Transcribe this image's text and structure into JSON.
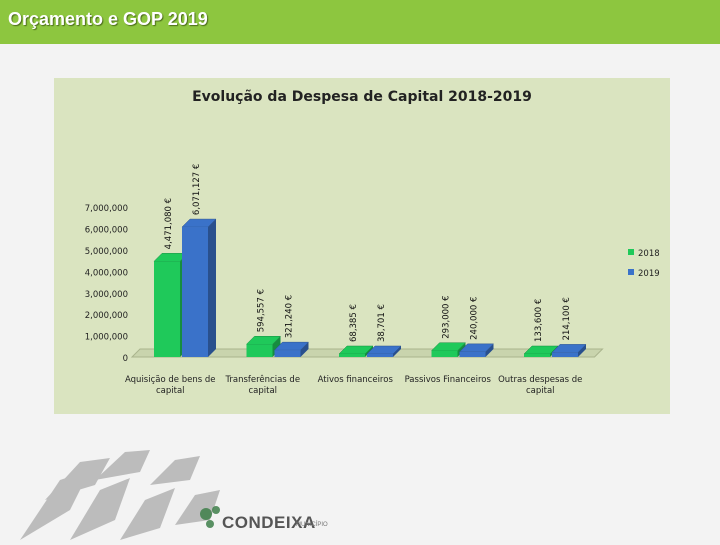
{
  "slide": {
    "title": "Orçamento e GOP 2019"
  },
  "logo": {
    "name": "CONDEIXA",
    "sub": "MUNICÍPIO"
  },
  "colors": {
    "series_2018": "#1fc95a",
    "series_2019": "#3a72c9",
    "header": "#8dc63f",
    "panel": "#dae4c0"
  },
  "chart_data": {
    "type": "bar",
    "title": "Evolução da Despesa de Capital 2018-2019",
    "categories": [
      "Aquisição de bens de capital",
      "Transferências de capital",
      "Ativos financeiros",
      "Passivos Financeiros",
      "Outras despesas de capital"
    ],
    "series": [
      {
        "name": "2018",
        "values": [
          4471080,
          594557,
          68385,
          293000,
          133600
        ],
        "labels": [
          "4,471,080 €",
          "594,557 €",
          "68,385 €",
          "293,000 €",
          "133,600 €"
        ]
      },
      {
        "name": "2019",
        "values": [
          6071127,
          321240,
          38701,
          240000,
          214100
        ],
        "labels": [
          "6,071,127 €",
          "321,240 €",
          "38,701 €",
          "240,000 €",
          "214,100 €"
        ]
      }
    ],
    "yticks": [
      "0",
      "1,000,000",
      "2,000,000",
      "3,000,000",
      "4,000,000",
      "5,000,000",
      "6,000,000",
      "7,000,000"
    ],
    "ytick_values": [
      0,
      1000000,
      2000000,
      3000000,
      4000000,
      5000000,
      6000000,
      7000000
    ],
    "ylim": [
      0,
      7000000
    ],
    "legend_position": "right",
    "xlabel": "",
    "ylabel": ""
  }
}
